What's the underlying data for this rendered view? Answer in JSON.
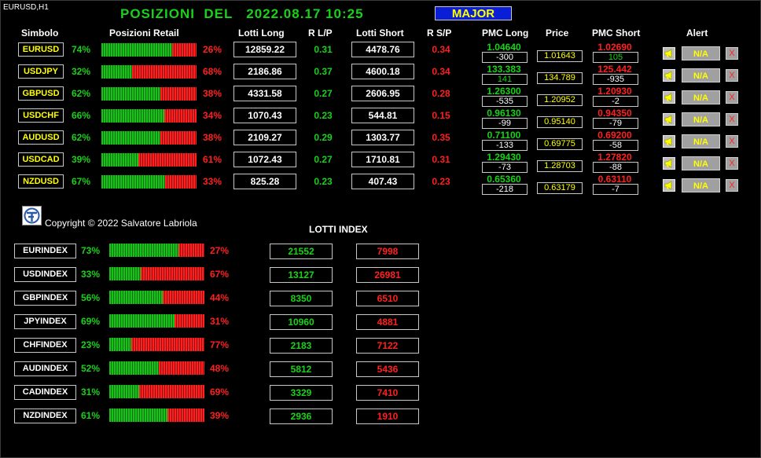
{
  "chart_label": "EURUSD,H1",
  "title": {
    "prefix": "POSIZIONI  DEL",
    "datetime": "2022.08.17 10:25"
  },
  "group_button": "MAJOR",
  "headers": {
    "symbol": "Simbolo",
    "retail": "Posizioni Retail",
    "lots_long": "Lotti Long",
    "ratio_long": "R L/P",
    "lots_short": "Lotti Short",
    "ratio_short": "R S/P",
    "pmc_long": "PMC Long",
    "price": "Price",
    "pmc_short": "PMC Short",
    "alert": "Alert"
  },
  "alert_label": "N/A",
  "close_label": "X",
  "pairs": [
    {
      "symbol": "EURUSD",
      "long_pct_label": "74%",
      "long_pct": 74,
      "short_pct_label": "26%",
      "lots_long": "12859.22",
      "ratio_long": "0.31",
      "lots_short": "4478.76",
      "ratio_short": "0.34",
      "pmc_long": "1.04640",
      "pmc_long_diff": "-300",
      "price": "1.01643",
      "pmc_short": "1.02690",
      "pmc_short_diff": "105"
    },
    {
      "symbol": "USDJPY",
      "long_pct_label": "32%",
      "long_pct": 32,
      "short_pct_label": "68%",
      "lots_long": "2186.86",
      "ratio_long": "0.37",
      "lots_short": "4600.18",
      "ratio_short": "0.34",
      "pmc_long": "133.383",
      "pmc_long_diff": "141",
      "price": "134.789",
      "pmc_short": "125.442",
      "pmc_short_diff": "-935"
    },
    {
      "symbol": "GBPUSD",
      "long_pct_label": "62%",
      "long_pct": 62,
      "short_pct_label": "38%",
      "lots_long": "4331.58",
      "ratio_long": "0.27",
      "lots_short": "2606.95",
      "ratio_short": "0.28",
      "pmc_long": "1.26300",
      "pmc_long_diff": "-535",
      "price": "1.20952",
      "pmc_short": "1.20930",
      "pmc_short_diff": "-2"
    },
    {
      "symbol": "USDCHF",
      "long_pct_label": "66%",
      "long_pct": 66,
      "short_pct_label": "34%",
      "lots_long": "1070.43",
      "ratio_long": "0.23",
      "lots_short": "544.81",
      "ratio_short": "0.15",
      "pmc_long": "0.96130",
      "pmc_long_diff": "-99",
      "price": "0.95140",
      "pmc_short": "0.94350",
      "pmc_short_diff": "-79"
    },
    {
      "symbol": "AUDUSD",
      "long_pct_label": "62%",
      "long_pct": 62,
      "short_pct_label": "38%",
      "lots_long": "2109.27",
      "ratio_long": "0.29",
      "lots_short": "1303.77",
      "ratio_short": "0.35",
      "pmc_long": "0.71100",
      "pmc_long_diff": "-133",
      "price": "0.69775",
      "pmc_short": "0.69200",
      "pmc_short_diff": "-58"
    },
    {
      "symbol": "USDCAD",
      "long_pct_label": "39%",
      "long_pct": 39,
      "short_pct_label": "61%",
      "lots_long": "1072.43",
      "ratio_long": "0.27",
      "lots_short": "1710.81",
      "ratio_short": "0.31",
      "pmc_long": "1.29430",
      "pmc_long_diff": "-73",
      "price": "1.28703",
      "pmc_short": "1.27820",
      "pmc_short_diff": "-88"
    },
    {
      "symbol": "NZDUSD",
      "long_pct_label": "67%",
      "long_pct": 67,
      "short_pct_label": "33%",
      "lots_long": "825.28",
      "ratio_long": "0.23",
      "lots_short": "407.43",
      "ratio_short": "0.23",
      "pmc_long": "0.65360",
      "pmc_long_diff": "-218",
      "price": "0.63179",
      "pmc_short": "0.63110",
      "pmc_short_diff": "-7"
    }
  ],
  "copyright": "Copyright © 2022 Salvatore Labriola",
  "index_title": "LOTTI INDEX",
  "indices": [
    {
      "symbol": "EURINDEX",
      "long_pct_label": "73%",
      "long_pct": 73,
      "short_pct_label": "27%",
      "lots_long": "21552",
      "lots_short": "7998"
    },
    {
      "symbol": "USDINDEX",
      "long_pct_label": "33%",
      "long_pct": 33,
      "short_pct_label": "67%",
      "lots_long": "13127",
      "lots_short": "26981"
    },
    {
      "symbol": "GBPINDEX",
      "long_pct_label": "56%",
      "long_pct": 56,
      "short_pct_label": "44%",
      "lots_long": "8350",
      "lots_short": "6510"
    },
    {
      "symbol": "JPYINDEX",
      "long_pct_label": "69%",
      "long_pct": 69,
      "short_pct_label": "31%",
      "lots_long": "10960",
      "lots_short": "4881"
    },
    {
      "symbol": "CHFINDEX",
      "long_pct_label": "23%",
      "long_pct": 23,
      "short_pct_label": "77%",
      "lots_long": "2183",
      "lots_short": "7122"
    },
    {
      "symbol": "AUDINDEX",
      "long_pct_label": "52%",
      "long_pct": 52,
      "short_pct_label": "48%",
      "lots_long": "5812",
      "lots_short": "5436"
    },
    {
      "symbol": "CADINDEX",
      "long_pct_label": "31%",
      "long_pct": 31,
      "short_pct_label": "69%",
      "lots_long": "3329",
      "lots_short": "7410"
    },
    {
      "symbol": "NZDINDEX",
      "long_pct_label": "61%",
      "long_pct": 61,
      "short_pct_label": "39%",
      "lots_long": "2936",
      "lots_short": "1910"
    }
  ],
  "colors": {
    "long": "#19d219",
    "short": "#ff2020",
    "symbol_text": "#ffff00",
    "group_button_bg": "#0a1ed6"
  },
  "icons": {
    "alert": "megaphone-icon",
    "close": "close-icon",
    "logo": "author-logo-icon"
  }
}
